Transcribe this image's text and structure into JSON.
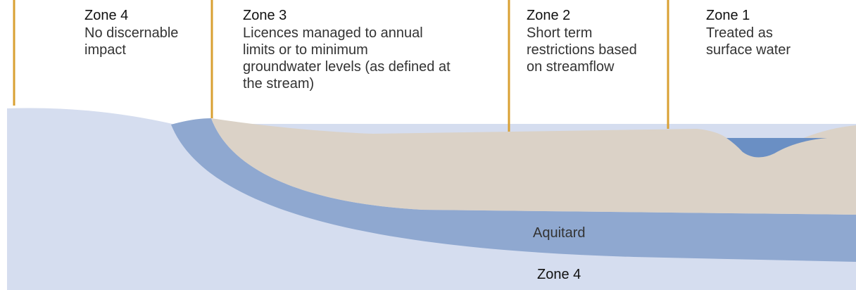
{
  "zones": [
    {
      "title": "Zone 4",
      "lines": [
        "No discernable",
        "impact"
      ]
    },
    {
      "title": "Zone 3",
      "lines": [
        "Licences managed to annual",
        "limits or to minimum",
        "groundwater levels (as defined at",
        "the stream)"
      ]
    },
    {
      "title": "Zone 2",
      "lines": [
        "Short term",
        "restrictions based",
        "on streamflow"
      ]
    },
    {
      "title": "Zone 1",
      "lines": [
        "Treated as",
        "surface water"
      ]
    }
  ],
  "labels": {
    "aquitard": "Aquitard",
    "deep_zone": "Zone 4"
  }
}
